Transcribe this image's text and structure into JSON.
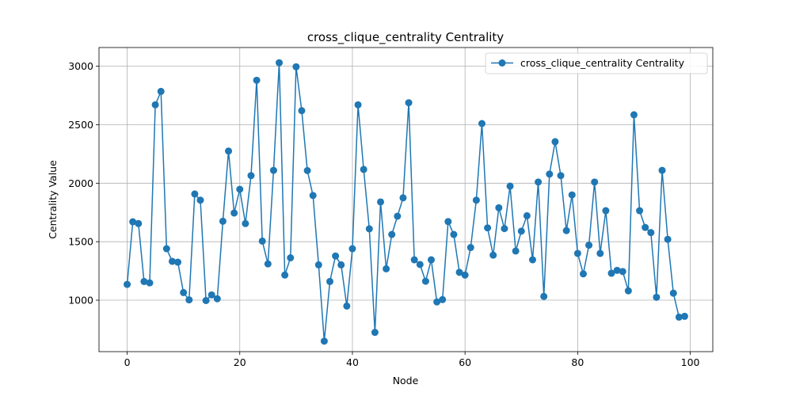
{
  "chart_data": {
    "type": "line",
    "title": "cross_clique_centrality Centrality",
    "xlabel": "Node",
    "ylabel": "Centrality Value",
    "xlim": [
      -5,
      104
    ],
    "ylim": [
      560,
      3160
    ],
    "xticks": [
      0,
      20,
      40,
      60,
      80,
      100
    ],
    "yticks": [
      1000,
      1500,
      2000,
      2500,
      3000
    ],
    "grid": true,
    "legend_position": "top-right",
    "series": [
      {
        "name": "cross_clique_centrality Centrality",
        "color": "#1f77b4",
        "marker": "circle",
        "x": [
          0,
          1,
          2,
          3,
          4,
          5,
          6,
          7,
          8,
          9,
          10,
          11,
          12,
          13,
          14,
          15,
          16,
          17,
          18,
          19,
          20,
          21,
          22,
          23,
          24,
          25,
          26,
          27,
          28,
          29,
          30,
          31,
          32,
          33,
          34,
          35,
          36,
          37,
          38,
          39,
          40,
          41,
          42,
          43,
          44,
          45,
          46,
          47,
          48,
          49,
          50,
          51,
          52,
          53,
          54,
          55,
          56,
          57,
          58,
          59,
          60,
          61,
          62,
          63,
          64,
          65,
          66,
          67,
          68,
          69,
          70,
          71,
          72,
          73,
          74,
          75,
          76,
          77,
          78,
          79,
          80,
          81,
          82,
          83,
          84,
          85,
          86,
          87,
          88,
          89,
          90,
          91,
          92,
          93,
          94,
          95,
          96,
          97,
          98,
          99
        ],
        "values": [
          1135,
          1670,
          1655,
          1160,
          1148,
          2670,
          2785,
          1440,
          1332,
          1325,
          1065,
          1003,
          1908,
          1855,
          997,
          1045,
          1012,
          1675,
          2275,
          1745,
          1948,
          1655,
          2065,
          2880,
          1505,
          1310,
          2110,
          3030,
          1215,
          1362,
          2995,
          2620,
          2108,
          1895,
          1302,
          650,
          1160,
          1378,
          1302,
          950,
          1440,
          2670,
          2118,
          1610,
          725,
          1840,
          1268,
          1562,
          1718,
          1875,
          2688,
          1345,
          1305,
          1162,
          1345,
          985,
          1005,
          1672,
          1562,
          1238,
          1215,
          1450,
          1855,
          2510,
          1618,
          1385,
          1790,
          1612,
          1975,
          1420,
          1590,
          1722,
          1345,
          2010,
          1032,
          2078,
          2355,
          2065,
          1595,
          1900,
          1400,
          1225,
          1470,
          2010,
          1400,
          1765,
          1230,
          1255,
          1245,
          1080,
          2585,
          1765,
          1622,
          1578,
          1025,
          2110,
          1520,
          1060,
          855,
          862
        ]
      }
    ]
  }
}
